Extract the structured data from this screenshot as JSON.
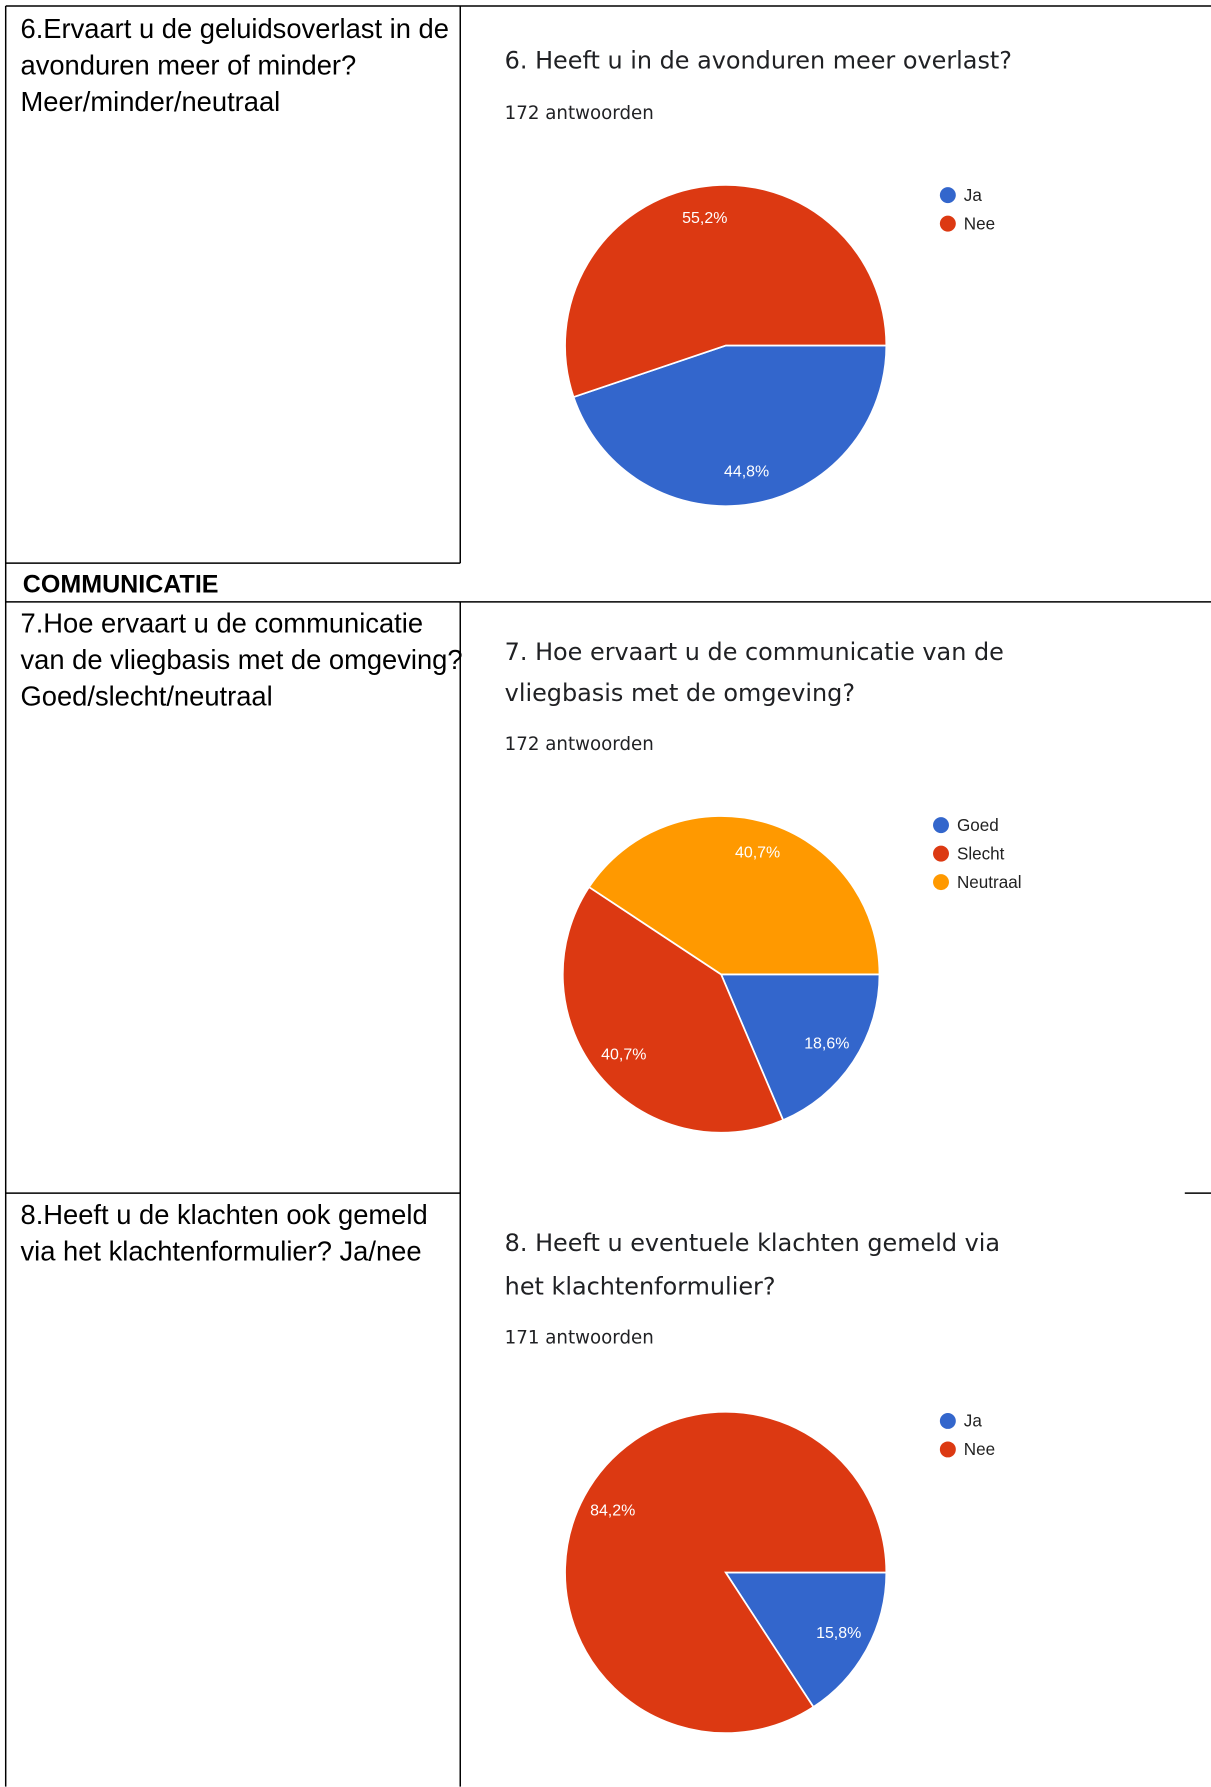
{
  "table": {
    "section": "COMMUNICATIE",
    "rows": [
      {
        "question": [
          "6.Ervaart u de geluidsoverlast in de",
          "avonduren meer of minder?",
          "Meer/minder/neutraal"
        ],
        "chart": {
          "type": "pie",
          "title": [
            "6. Heeft u in de avonduren meer overlast?"
          ],
          "subtitle": "172 antwoorden",
          "categories": [
            "Ja",
            "Nee"
          ],
          "values": [
            44.8,
            55.2
          ],
          "value_labels": [
            "44,8%",
            "55,2%"
          ],
          "colors": [
            "#3366cc",
            "#dc3912"
          ]
        }
      },
      {
        "question": [
          "7.Hoe ervaart u de communicatie",
          "van de vliegbasis met de omgeving?",
          "Goed/slecht/neutraal"
        ],
        "chart": {
          "type": "pie",
          "title": [
            "7. Hoe ervaart u de communicatie van de",
            "vliegbasis met de omgeving?"
          ],
          "subtitle": "172 antwoorden",
          "categories": [
            "Goed",
            "Slecht",
            "Neutraal"
          ],
          "values": [
            18.6,
            40.7,
            40.7
          ],
          "value_labels": [
            "18,6%",
            "40,7%",
            "40,7%"
          ],
          "colors": [
            "#3366cc",
            "#dc3912",
            "#ff9900"
          ]
        }
      },
      {
        "question": [
          "8.Heeft u de klachten ook gemeld",
          "via het klachtenformulier? Ja/nee"
        ],
        "chart": {
          "type": "pie",
          "title": [
            "8. Heeft u eventuele klachten gemeld via",
            "het klachtenformulier?"
          ],
          "subtitle": "171 antwoorden",
          "categories": [
            "Ja",
            "Nee"
          ],
          "values": [
            15.8,
            84.2
          ],
          "value_labels": [
            "15,8%",
            "84,2%"
          ],
          "colors": [
            "#3366cc",
            "#dc3912"
          ]
        }
      }
    ]
  }
}
